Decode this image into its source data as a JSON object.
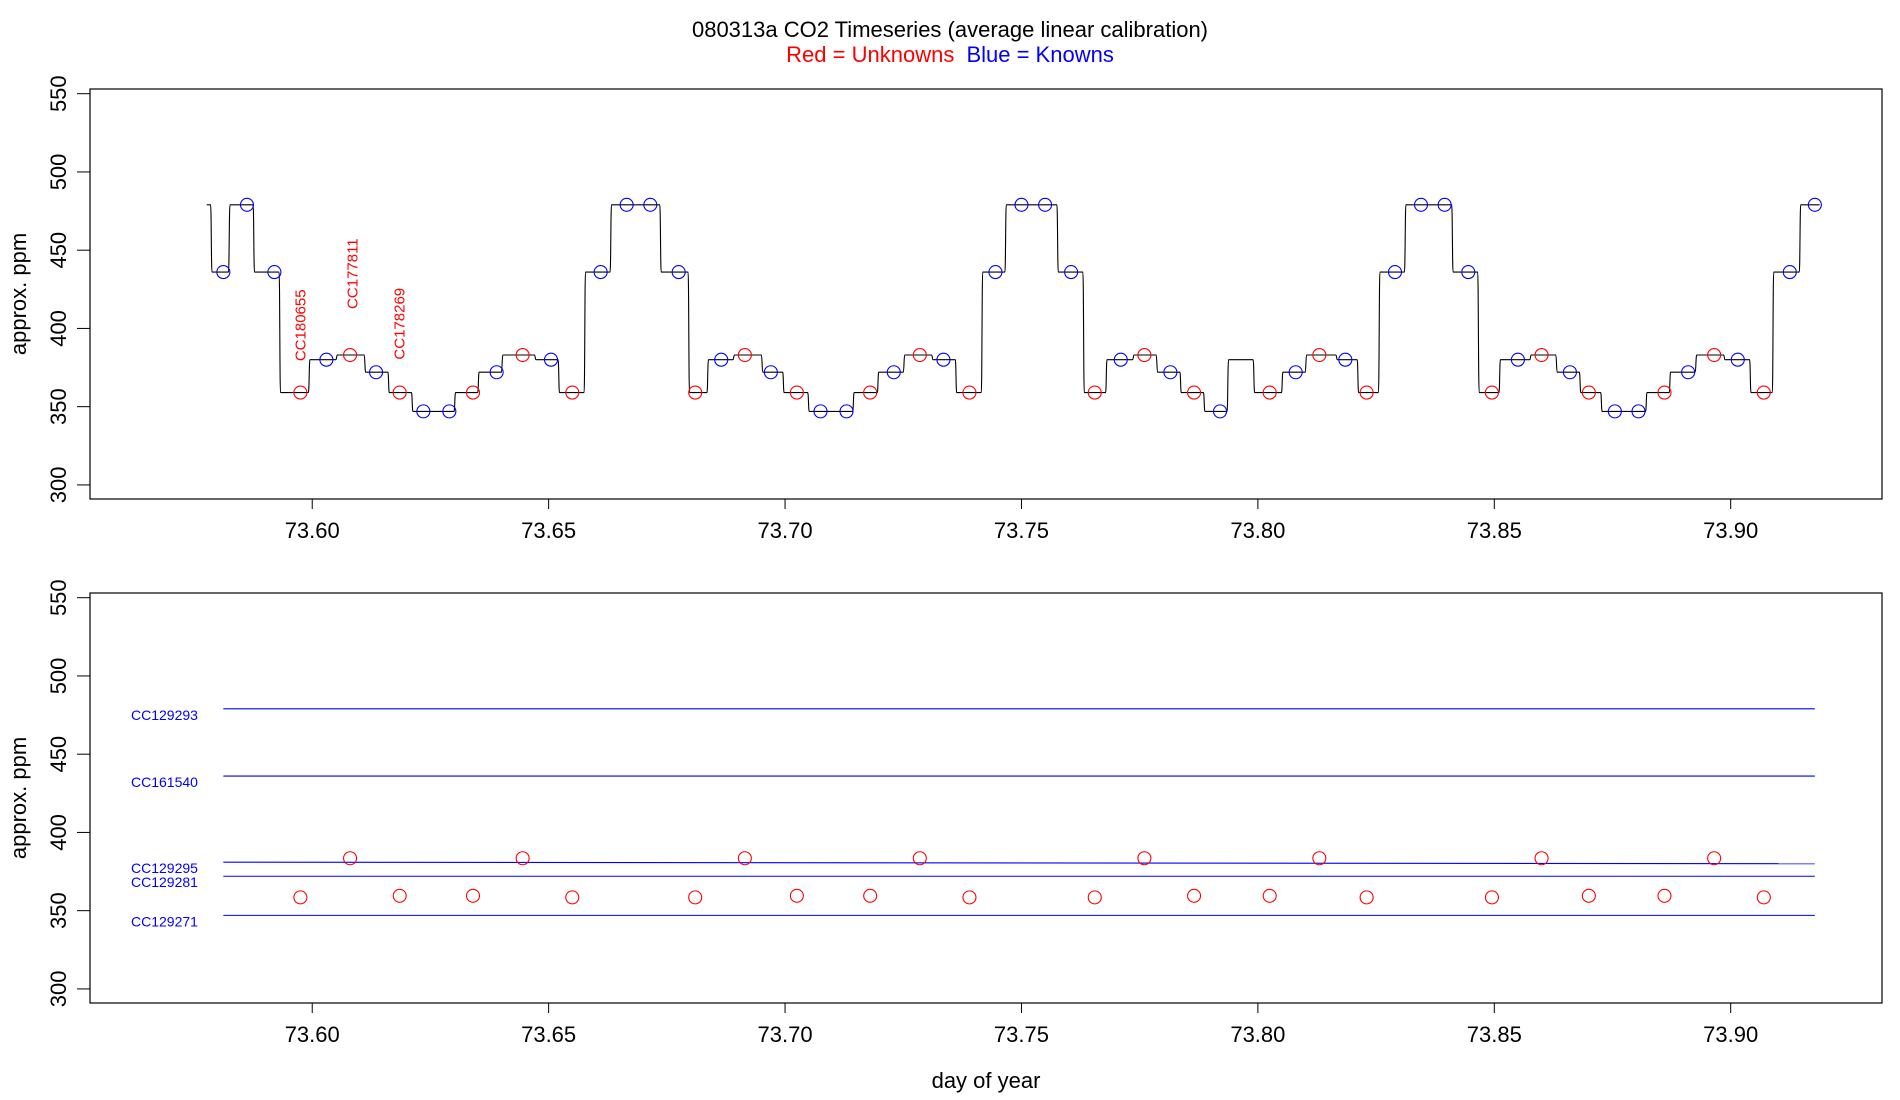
{
  "title": {
    "main": "080313a   CO2 Timeseries (average linear calibration)",
    "red_part": "Red = Unknowns",
    "blue_part": "Blue = Knowns"
  },
  "colors": {
    "unknown": "#ff0000",
    "known": "#0000ff",
    "trace": "#000000",
    "frame": "#000000"
  },
  "chart_data": [
    {
      "type": "line",
      "panel": "top",
      "xlabel": "",
      "ylabel": "approx. ppm",
      "xlim": [
        73.553,
        73.932
      ],
      "ylim": [
        291,
        553
      ],
      "xticks": [
        73.6,
        73.65,
        73.7,
        73.75,
        73.8,
        73.85,
        73.9
      ],
      "xtick_labels": [
        "73.60",
        "73.65",
        "73.70",
        "73.75",
        "73.80",
        "73.85",
        "73.90"
      ],
      "yticks": [
        300,
        350,
        400,
        450,
        500,
        550
      ],
      "ytick_labels": [
        "300",
        "350",
        "400",
        "450",
        "500",
        "550"
      ],
      "series": [
        {
          "kind": "step-trace",
          "segments": [
            [
              73.5777,
              73.5785,
              479
            ],
            [
              73.5788,
              73.5823,
              436
            ],
            [
              73.5826,
              73.5875,
              479
            ],
            [
              73.5878,
              73.593,
              436
            ],
            [
              73.5933,
              73.5992,
              359
            ],
            [
              73.5995,
              73.605,
              380
            ],
            [
              73.6053,
              73.611,
              383
            ],
            [
              73.6113,
              73.616,
              372
            ],
            [
              73.6163,
              73.621,
              359
            ],
            [
              73.6213,
              73.63,
              347
            ],
            [
              73.6303,
              73.635,
              359
            ],
            [
              73.6353,
              73.64,
              372
            ],
            [
              73.6403,
              73.647,
              383
            ],
            [
              73.6473,
              73.652,
              380
            ],
            [
              73.6523,
              73.6575,
              359
            ],
            [
              73.6578,
              73.663,
              436
            ],
            [
              73.6633,
              73.6735,
              479
            ],
            [
              73.6738,
              73.6795,
              436
            ],
            [
              73.6798,
              73.6835,
              359
            ],
            [
              73.6838,
              73.689,
              380
            ],
            [
              73.6893,
              73.695,
              383
            ],
            [
              73.6953,
              73.6995,
              372
            ],
            [
              73.6998,
              73.7048,
              359
            ],
            [
              73.7051,
              73.7143,
              347
            ],
            [
              73.7146,
              73.7195,
              359
            ],
            [
              73.7198,
              73.725,
              372
            ],
            [
              73.7253,
              73.731,
              383
            ],
            [
              73.7313,
              73.736,
              380
            ],
            [
              73.7363,
              73.7415,
              359
            ],
            [
              73.7418,
              73.7465,
              436
            ],
            [
              73.7468,
              73.7575,
              479
            ],
            [
              73.7578,
              73.763,
              436
            ],
            [
              73.7633,
              73.7678,
              359
            ],
            [
              73.7681,
              73.7735,
              380
            ],
            [
              73.7738,
              73.7785,
              383
            ],
            [
              73.7788,
              73.7835,
              372
            ],
            [
              73.7838,
              73.7885,
              359
            ],
            [
              73.7888,
              73.7935,
              347
            ],
            [
              73.7938,
              73.799,
              380
            ],
            [
              73.7993,
              73.805,
              359
            ],
            [
              73.8053,
              73.81,
              372
            ],
            [
              73.8103,
              73.8165,
              383
            ],
            [
              73.8168,
              73.821,
              380
            ],
            [
              73.8213,
              73.8255,
              359
            ],
            [
              73.8258,
              73.831,
              436
            ],
            [
              73.8313,
              73.841,
              479
            ],
            [
              73.8413,
              73.8465,
              436
            ],
            [
              73.8468,
              73.851,
              359
            ],
            [
              73.8513,
              73.8575,
              380
            ],
            [
              73.8578,
              73.863,
              383
            ],
            [
              73.8633,
              73.868,
              372
            ],
            [
              73.8683,
              73.8725,
              359
            ],
            [
              73.8728,
              73.882,
              347
            ],
            [
              73.8823,
              73.887,
              359
            ],
            [
              73.8873,
              73.8925,
              372
            ],
            [
              73.8928,
              73.8985,
              383
            ],
            [
              73.8988,
              73.904,
              380
            ],
            [
              73.9043,
              73.9088,
              359
            ],
            [
              73.9091,
              73.9145,
              436
            ],
            [
              73.9148,
              73.9188,
              479
            ]
          ]
        },
        {
          "kind": "known-points",
          "x": [
            73.5812,
            73.5862,
            73.592,
            73.603,
            73.6135,
            73.6235,
            73.629,
            73.639,
            73.6505,
            73.661,
            73.6665,
            73.6715,
            73.6775,
            73.6865,
            73.697,
            73.7075,
            73.713,
            73.723,
            73.7335,
            73.7445,
            73.75,
            73.755,
            73.7605,
            73.771,
            73.7815,
            73.792,
            73.808,
            73.8185,
            73.829,
            73.8345,
            73.8395,
            73.8445,
            73.855,
            73.866,
            73.8755,
            73.8805,
            73.891,
            73.9015,
            73.9125,
            73.9178
          ],
          "y": [
            436,
            479,
            436,
            380,
            372,
            347,
            347,
            372,
            380,
            436,
            479,
            479,
            436,
            380,
            372,
            347,
            347,
            372,
            380,
            436,
            479,
            479,
            436,
            380,
            372,
            347,
            372,
            380,
            436,
            479,
            479,
            436,
            380,
            372,
            347,
            347,
            372,
            380,
            436,
            479
          ]
        },
        {
          "kind": "unknown-points",
          "x": [
            73.5975,
            73.608,
            73.6185,
            73.634,
            73.6445,
            73.655,
            73.681,
            73.6915,
            73.7025,
            73.718,
            73.7285,
            73.739,
            73.7655,
            73.776,
            73.7865,
            73.8025,
            73.813,
            73.823,
            73.8495,
            73.86,
            73.87,
            73.886,
            73.8965,
            73.907
          ],
          "y": [
            359,
            383,
            359,
            359,
            383,
            359,
            359,
            383,
            359,
            359,
            383,
            359,
            359,
            383,
            359,
            359,
            383,
            359,
            359,
            383,
            359,
            359,
            383,
            359
          ]
        }
      ],
      "annotations": [
        {
          "text": "CC180655",
          "x": 73.5975,
          "y": 402
        },
        {
          "text": "CC177811",
          "x": 73.6085,
          "y": 435
        },
        {
          "text": "CC178269",
          "x": 73.6185,
          "y": 403
        }
      ]
    },
    {
      "type": "scatter",
      "panel": "bottom",
      "xlabel": "day of year",
      "ylabel": "approx. ppm",
      "xlim": [
        73.553,
        73.932
      ],
      "ylim": [
        291,
        553
      ],
      "xticks": [
        73.6,
        73.65,
        73.7,
        73.75,
        73.8,
        73.85,
        73.9
      ],
      "xtick_labels": [
        "73.60",
        "73.65",
        "73.70",
        "73.75",
        "73.80",
        "73.85",
        "73.90"
      ],
      "yticks": [
        300,
        350,
        400,
        450,
        500,
        550
      ],
      "ytick_labels": [
        "300",
        "350",
        "400",
        "450",
        "500",
        "550"
      ],
      "series": [
        {
          "kind": "standard-lines",
          "x_start": 73.5812,
          "x_end": 73.9178,
          "lines": [
            {
              "name": "CC129293",
              "y_start": 479,
              "y_end": 479
            },
            {
              "name": "CC161540",
              "y_start": 436,
              "y_end": 436
            },
            {
              "name": "CC129295",
              "y_start": 381,
              "y_end": 380
            },
            {
              "name": "CC129281",
              "y_start": 372,
              "y_end": 372
            },
            {
              "name": "CC129271",
              "y_start": 347,
              "y_end": 347
            }
          ]
        },
        {
          "kind": "unknown-points",
          "x": [
            73.5975,
            73.608,
            73.6185,
            73.634,
            73.6445,
            73.655,
            73.681,
            73.6915,
            73.7025,
            73.718,
            73.7285,
            73.739,
            73.7655,
            73.776,
            73.7865,
            73.8025,
            73.813,
            73.823,
            73.8495,
            73.86,
            73.87,
            73.886,
            73.8965,
            73.907
          ],
          "y": [
            358.5,
            383.5,
            359.5,
            359.5,
            383.5,
            358.5,
            358.5,
            383.5,
            359.5,
            359.5,
            383.5,
            358.5,
            358.5,
            383.5,
            359.5,
            359.5,
            383.5,
            358.5,
            358.5,
            383.5,
            359.5,
            359.5,
            383.5,
            358.5
          ]
        }
      ]
    }
  ]
}
